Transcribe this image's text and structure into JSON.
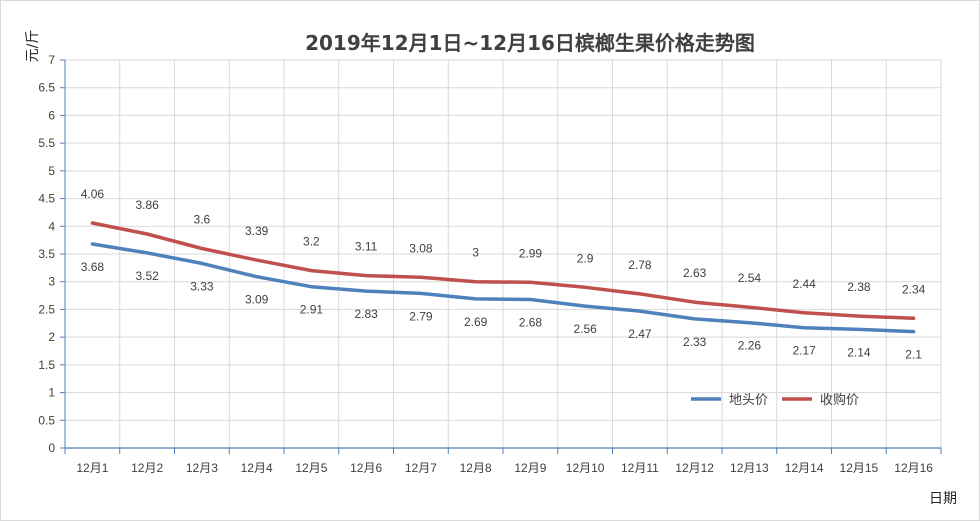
{
  "chart_data": {
    "type": "line",
    "title": "2019年12月1日~12月16日槟榔生果价格走势图",
    "xlabel": "日期",
    "ylabel": "元/斤",
    "ylim": [
      0,
      7
    ],
    "yticks": [
      "0",
      "0.5",
      "1",
      "1.5",
      "2",
      "2.5",
      "3",
      "3.5",
      "4",
      "4.5",
      "5",
      "5.5",
      "6",
      "6.5",
      "7"
    ],
    "grid": true,
    "legend_position": "bottom-right",
    "categories": [
      "12月1",
      "12月2",
      "12月3",
      "12月4",
      "12月5",
      "12月6",
      "12月7",
      "12月8",
      "12月9",
      "12月10",
      "12月11",
      "12月12",
      "12月13",
      "12月14",
      "12月15",
      "12月16"
    ],
    "series": [
      {
        "name": "地头价",
        "color": "#4f81bd",
        "values": [
          3.68,
          3.52,
          3.33,
          3.09,
          2.91,
          2.83,
          2.79,
          2.69,
          2.68,
          2.56,
          2.47,
          2.33,
          2.26,
          2.17,
          2.14,
          2.1
        ],
        "labels": [
          "3.68",
          "3.52",
          "3.33",
          "3.09",
          "2.91",
          "2.83",
          "2.79",
          "2.69",
          "2.68",
          "2.56",
          "2.47",
          "2.33",
          "2.26",
          "2.17",
          "2.14",
          "2.1"
        ]
      },
      {
        "name": "收购价",
        "color": "#c0504d",
        "values": [
          4.06,
          3.86,
          3.6,
          3.39,
          3.2,
          3.11,
          3.08,
          3.0,
          2.99,
          2.9,
          2.78,
          2.63,
          2.54,
          2.44,
          2.38,
          2.34
        ],
        "labels": [
          "4.06",
          "3.86",
          "3.6",
          "3.39",
          "3.2",
          "3.11",
          "3.08",
          "3",
          "2.99",
          "2.9",
          "2.78",
          "2.63",
          "2.54",
          "2.44",
          "2.38",
          "2.34"
        ]
      }
    ]
  },
  "colors": {
    "grid": "#d9d9d9",
    "axis": "#4f81bd",
    "text": "#404040"
  }
}
